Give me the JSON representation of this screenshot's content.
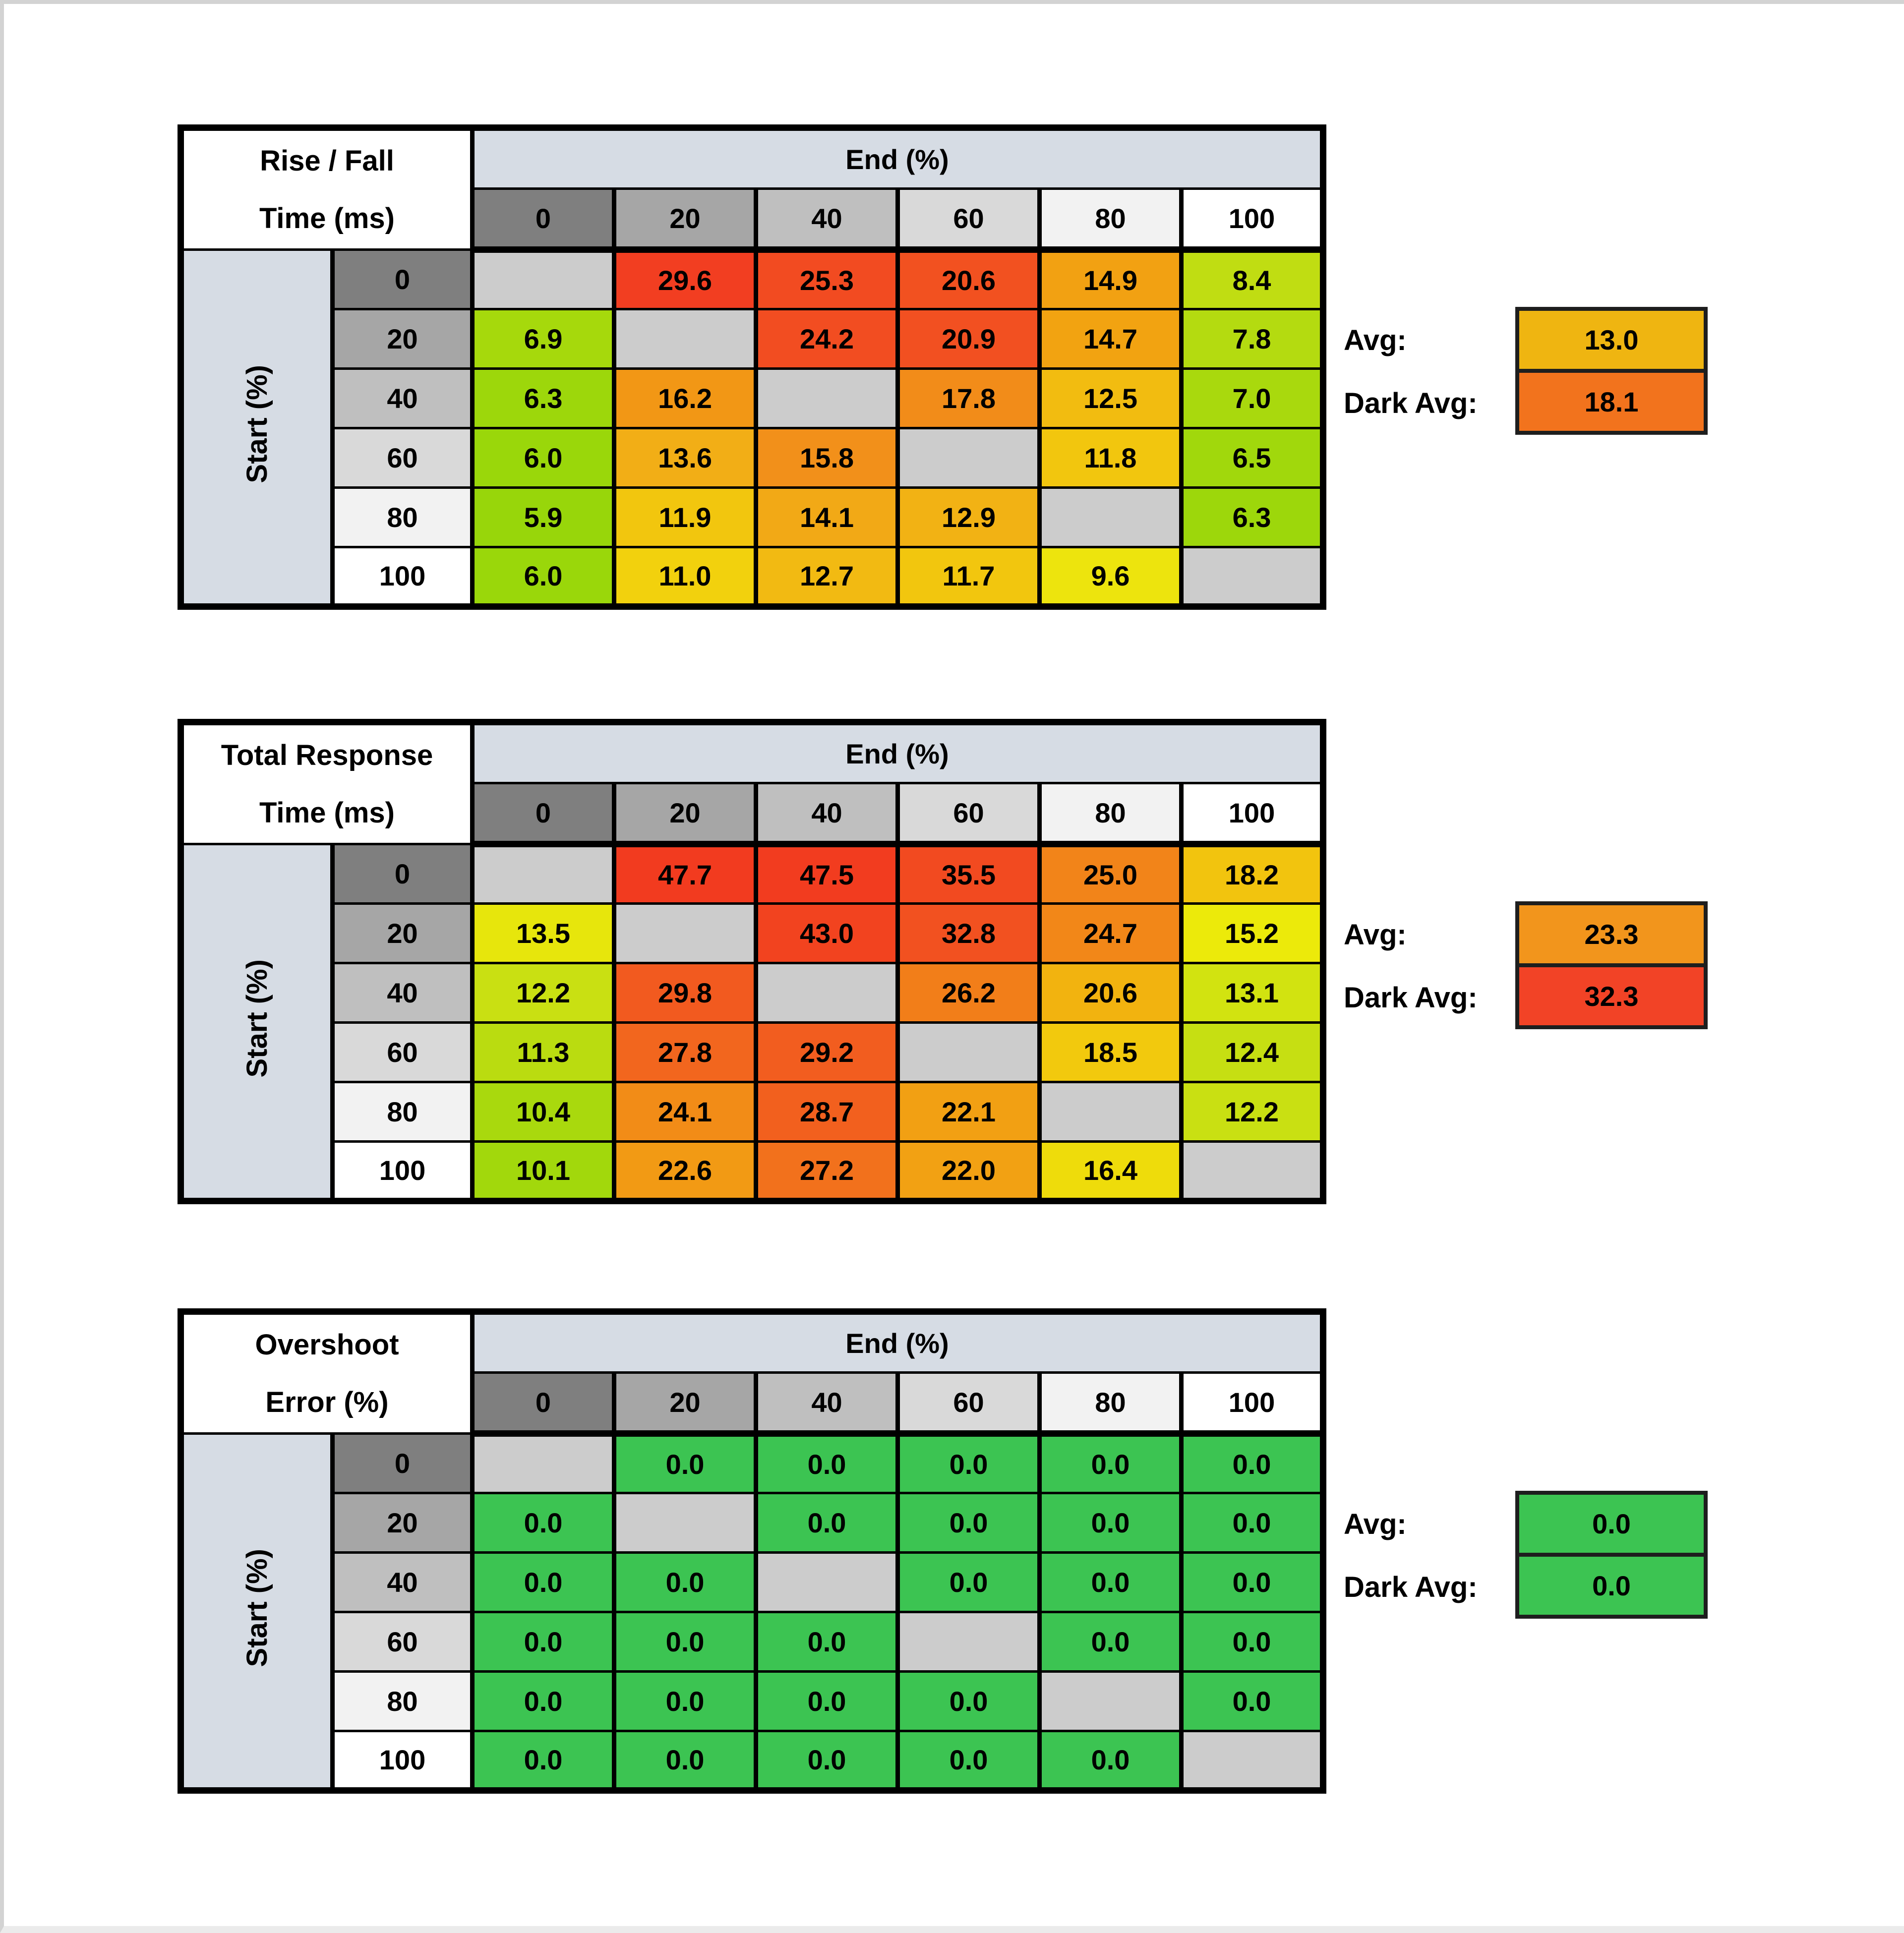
{
  "shared": {
    "corner_header": "End (%)",
    "row_axis_label": "Start (%)",
    "col_headers": [
      "0",
      "20",
      "40",
      "60",
      "80",
      "100"
    ],
    "row_headers": [
      "0",
      "20",
      "40",
      "60",
      "80",
      "100"
    ],
    "header_shades": [
      "#7F7F7F",
      "#A6A6A6",
      "#BFBFBF",
      "#D9D9D9",
      "#F2F2F2",
      "#FFFFFF"
    ],
    "diagonal_color": "#CCCCCC",
    "band_color": "#D6DCE4",
    "avg_label": "Avg:",
    "dark_avg_label": "Dark Avg:"
  },
  "chart_data": [
    {
      "type": "heatmap",
      "title_lines": [
        "Rise / Fall",
        "Time (ms)"
      ],
      "xlabel": "End (%)",
      "ylabel": "Start (%)",
      "x": [
        "0",
        "20",
        "40",
        "60",
        "80",
        "100"
      ],
      "y": [
        "0",
        "20",
        "40",
        "60",
        "80",
        "100"
      ],
      "values": [
        [
          null,
          "29.6",
          "25.3",
          "20.6",
          "14.9",
          "8.4"
        ],
        [
          "6.9",
          null,
          "24.2",
          "20.9",
          "14.7",
          "7.8"
        ],
        [
          "6.3",
          "16.2",
          null,
          "17.8",
          "12.5",
          "7.0"
        ],
        [
          "6.0",
          "13.6",
          "15.8",
          null,
          "11.8",
          "6.5"
        ],
        [
          "5.9",
          "11.9",
          "14.1",
          "12.9",
          null,
          "6.3"
        ],
        [
          "6.0",
          "11.0",
          "12.7",
          "11.7",
          "9.6",
          null
        ]
      ],
      "colors": [
        [
          null,
          "#F23E21",
          "#F24B21",
          "#F25120",
          "#F2A112",
          "#C0DD12"
        ],
        [
          "#A6D90C",
          null,
          "#F24D21",
          "#F25021",
          "#F2A311",
          "#B4DB10"
        ],
        [
          "#9DD70B",
          "#F29715",
          null,
          "#F28C19",
          "#F2BC10",
          "#A9D90D"
        ],
        [
          "#9AD70A",
          "#F2AE16",
          "#F2901A",
          null,
          "#F2C60E",
          "#A1D80C"
        ],
        [
          "#98D60A",
          "#F2C60E",
          "#F2A916",
          "#F2B214",
          null,
          "#9DD70B"
        ],
        [
          "#9AD70A",
          "#F2D10D",
          "#F2BA12",
          "#F2C60E",
          "#EDE40D",
          null
        ]
      ],
      "avg_value": "13.0",
      "avg_color": "#EFB511",
      "dark_avg_value": "18.1",
      "dark_avg_color": "#F2731D"
    },
    {
      "type": "heatmap",
      "title_lines": [
        "Total Response",
        "Time (ms)"
      ],
      "xlabel": "End (%)",
      "ylabel": "Start (%)",
      "x": [
        "0",
        "20",
        "40",
        "60",
        "80",
        "100"
      ],
      "y": [
        "0",
        "20",
        "40",
        "60",
        "80",
        "100"
      ],
      "values": [
        [
          null,
          "47.7",
          "47.5",
          "35.5",
          "25.0",
          "18.2"
        ],
        [
          "13.5",
          null,
          "43.0",
          "32.8",
          "24.7",
          "15.2"
        ],
        [
          "12.2",
          "29.8",
          null,
          "26.2",
          "20.6",
          "13.1"
        ],
        [
          "11.3",
          "27.8",
          "29.2",
          null,
          "18.5",
          "12.4"
        ],
        [
          "10.4",
          "24.1",
          "28.7",
          "22.1",
          null,
          "12.2"
        ],
        [
          "10.1",
          "22.6",
          "27.2",
          "22.0",
          "16.4",
          null
        ]
      ],
      "colors": [
        [
          null,
          "#F23B1F",
          "#F23C1F",
          "#F24A20",
          "#F28419",
          "#F2C40E"
        ],
        [
          "#E7E60C",
          null,
          "#F2431F",
          "#F25120",
          "#F28718",
          "#ECEA0A"
        ],
        [
          "#C9E012",
          "#F25A1F",
          null,
          "#F27E19",
          "#F2B30F",
          "#D2E310"
        ],
        [
          "#BADC10",
          "#F2661E",
          "#F25D1F",
          null,
          "#F2C90D",
          "#C6DF12"
        ],
        [
          "#A9D90D",
          "#F28C17",
          "#F2601E",
          "#F2A013",
          null,
          "#C9E012"
        ],
        [
          "#A2D80C",
          "#F29A14",
          "#F2711C",
          "#F2A113",
          "#EEDC0B",
          null
        ]
      ],
      "avg_value": "23.3",
      "avg_color": "#F2951C",
      "dark_avg_value": "32.3",
      "dark_avg_color": "#F24326"
    },
    {
      "type": "heatmap",
      "title_lines": [
        "Overshoot",
        "Error (%)"
      ],
      "xlabel": "End (%)",
      "ylabel": "Start (%)",
      "x": [
        "0",
        "20",
        "40",
        "60",
        "80",
        "100"
      ],
      "y": [
        "0",
        "20",
        "40",
        "60",
        "80",
        "100"
      ],
      "values": [
        [
          null,
          "0.0",
          "0.0",
          "0.0",
          "0.0",
          "0.0"
        ],
        [
          "0.0",
          null,
          "0.0",
          "0.0",
          "0.0",
          "0.0"
        ],
        [
          "0.0",
          "0.0",
          null,
          "0.0",
          "0.0",
          "0.0"
        ],
        [
          "0.0",
          "0.0",
          "0.0",
          null,
          "0.0",
          "0.0"
        ],
        [
          "0.0",
          "0.0",
          "0.0",
          "0.0",
          null,
          "0.0"
        ],
        [
          "0.0",
          "0.0",
          "0.0",
          "0.0",
          "0.0",
          null
        ]
      ],
      "colors": [
        [
          null,
          "#3CC452",
          "#3CC452",
          "#3CC452",
          "#3CC452",
          "#3CC452"
        ],
        [
          "#3CC452",
          null,
          "#3CC452",
          "#3CC452",
          "#3CC452",
          "#3CC452"
        ],
        [
          "#3CC452",
          "#3CC452",
          null,
          "#3CC452",
          "#3CC452",
          "#3CC452"
        ],
        [
          "#3CC452",
          "#3CC452",
          "#3CC452",
          null,
          "#3CC452",
          "#3CC452"
        ],
        [
          "#3CC452",
          "#3CC452",
          "#3CC452",
          "#3CC452",
          null,
          "#3CC452"
        ],
        [
          "#3CC452",
          "#3CC452",
          "#3CC452",
          "#3CC452",
          "#3CC452",
          null
        ]
      ],
      "avg_value": "0.0",
      "avg_color": "#3CC452",
      "dark_avg_value": "0.0",
      "dark_avg_color": "#3CC452"
    }
  ]
}
